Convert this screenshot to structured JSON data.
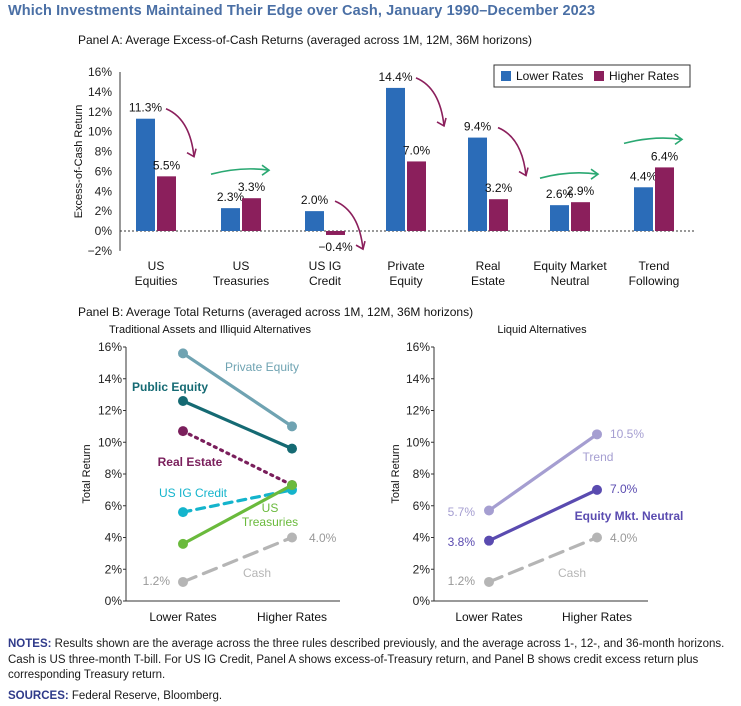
{
  "title": "Which Investments Maintained Their Edge over Cash, January 1990–December 2023",
  "colors": {
    "lower": "#2b6cb8",
    "higher": "#8b1f5c",
    "arrow": "#8b1f5c",
    "arrow_green": "#2aa872",
    "private_equity": "#6fa3b2",
    "public_equity": "#156a73",
    "real_estate": "#7a1f5c",
    "us_ig_credit": "#14b4cc",
    "us_treasuries": "#6aba3c",
    "cash": "#b5b5b5",
    "trend": "#a59ed1",
    "equity_mkt_neutral": "#5a4bb0",
    "notes_label": "#2f3a8a"
  },
  "chart_data": [
    {
      "type": "bar",
      "title": "Panel A: Average Excess-of-Cash Returns (averaged across 1M, 12M, 36M horizons)",
      "ylabel": "Excess-of-Cash Return",
      "ylim": [
        -2,
        16
      ],
      "yticks": [
        -2,
        0,
        2,
        4,
        6,
        8,
        10,
        12,
        14,
        16
      ],
      "ytick_labels": [
        "−2%",
        "0%",
        "2%",
        "4%",
        "6%",
        "8%",
        "10%",
        "12%",
        "14%",
        "16%"
      ],
      "categories": [
        [
          "US",
          "Equities"
        ],
        [
          "US",
          "Treasuries"
        ],
        [
          "US IG",
          "Credit"
        ],
        [
          "Private",
          "Equity"
        ],
        [
          "Real",
          "Estate"
        ],
        [
          "Equity Market",
          "Neutral"
        ],
        [
          "Trend",
          "Following"
        ]
      ],
      "series": [
        {
          "name": "Lower Rates",
          "values": [
            11.3,
            2.3,
            2.0,
            14.4,
            9.4,
            2.6,
            4.4
          ],
          "labels": [
            "11.3%",
            "2.3%",
            "2.0%",
            "14.4%",
            "9.4%",
            "2.6%",
            "4.4%"
          ]
        },
        {
          "name": "Higher Rates",
          "values": [
            5.5,
            3.3,
            -0.4,
            7.0,
            3.2,
            2.9,
            6.4
          ],
          "labels": [
            "5.5%",
            "3.3%",
            "−0.4%",
            "7.0%",
            "3.2%",
            "2.9%",
            "6.4%"
          ]
        }
      ],
      "arrows": [
        "down",
        "right",
        "down",
        "down",
        "down",
        "right",
        "right"
      ],
      "legend_position": "top-right"
    },
    {
      "type": "line",
      "panel_title": "Panel B: Average Total Returns (averaged across 1M, 12M, 36M horizons)",
      "title": "Traditional Assets and Illiquid Alternatives",
      "ylabel": "Total Return",
      "ylim": [
        0,
        16
      ],
      "yticks": [
        0,
        2,
        4,
        6,
        8,
        10,
        12,
        14,
        16
      ],
      "ytick_labels": [
        "0%",
        "2%",
        "4%",
        "6%",
        "8%",
        "10%",
        "12%",
        "14%",
        "16%"
      ],
      "x": [
        "Lower Rates",
        "Higher Rates"
      ],
      "series": [
        {
          "name": "Private Equity",
          "values": [
            15.6,
            11.0
          ],
          "style": "solid",
          "color_key": "private_equity"
        },
        {
          "name": "Public Equity",
          "values": [
            12.6,
            9.6
          ],
          "style": "solid",
          "color_key": "public_equity"
        },
        {
          "name": "Real Estate",
          "values": [
            10.7,
            7.3
          ],
          "style": "dotted",
          "color_key": "real_estate"
        },
        {
          "name": "US IG Credit",
          "values": [
            5.6,
            7.0
          ],
          "style": "dashed",
          "color_key": "us_ig_credit"
        },
        {
          "name": "US Treasuries",
          "name_lines": [
            "US",
            "Treasuries"
          ],
          "values": [
            3.6,
            7.3
          ],
          "style": "solid",
          "color_key": "us_treasuries"
        },
        {
          "name": "Cash",
          "values": [
            1.2,
            4.0
          ],
          "style": "dashed",
          "color_key": "cash",
          "value_labels": [
            "1.2%",
            "4.0%"
          ]
        }
      ]
    },
    {
      "type": "line",
      "title": "Liquid Alternatives",
      "ylabel": "Total Return",
      "ylim": [
        0,
        16
      ],
      "yticks": [
        0,
        2,
        4,
        6,
        8,
        10,
        12,
        14,
        16
      ],
      "ytick_labels": [
        "0%",
        "2%",
        "4%",
        "6%",
        "8%",
        "10%",
        "12%",
        "14%",
        "16%"
      ],
      "x": [
        "Lower Rates",
        "Higher Rates"
      ],
      "series": [
        {
          "name": "Trend",
          "values": [
            5.7,
            10.5
          ],
          "style": "solid",
          "color_key": "trend",
          "value_labels": [
            "5.7%",
            "10.5%"
          ]
        },
        {
          "name": "Equity Mkt. Neutral",
          "values": [
            3.8,
            7.0
          ],
          "style": "solid",
          "color_key": "equity_mkt_neutral",
          "value_labels": [
            "3.8%",
            "7.0%"
          ]
        },
        {
          "name": "Cash",
          "values": [
            1.2,
            4.0
          ],
          "style": "dashed",
          "color_key": "cash",
          "value_labels": [
            "1.2%",
            "4.0%"
          ]
        }
      ]
    }
  ],
  "notes": {
    "label": "NOTES:",
    "text": " Results shown are the average across the three rules described previously, and the average across 1-, 12-, and 36-month horizons. Cash is US three-month T-bill. For US IG Credit, Panel A shows excess-of-Treasury return, and Panel B shows credit excess return plus corresponding Treasury return."
  },
  "sources": {
    "label": "SOURCES:",
    "text": " Federal Reserve, Bloomberg."
  }
}
